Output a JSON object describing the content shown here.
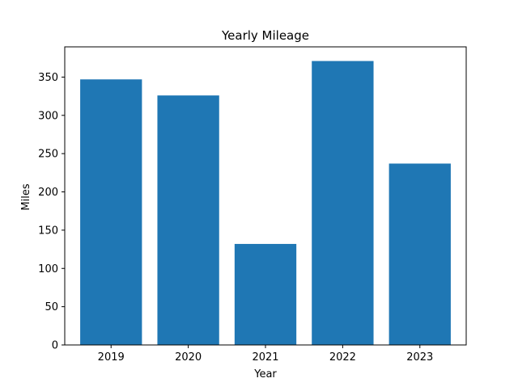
{
  "chart_data": {
    "type": "bar",
    "title": "Yearly Mileage",
    "xlabel": "Year",
    "ylabel": "Miles",
    "categories": [
      "2019",
      "2020",
      "2021",
      "2022",
      "2023"
    ],
    "values": [
      347,
      326,
      132,
      371,
      237
    ],
    "ylim": [
      0,
      389.5
    ],
    "yticks": [
      0,
      50,
      100,
      150,
      200,
      250,
      300,
      350
    ],
    "grid": false,
    "bar_color": "#1f77b4"
  }
}
